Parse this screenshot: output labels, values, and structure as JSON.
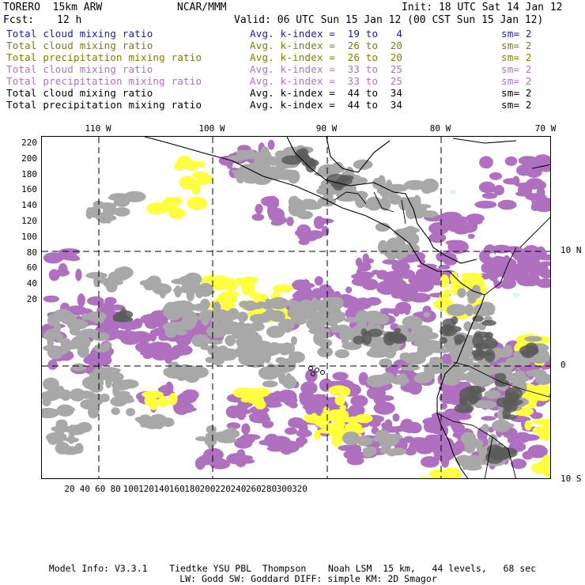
{
  "header": {
    "model": "TORERO  15km ARW",
    "org": "NCAR/MMM",
    "init": "Init: 18 UTC Sat 14 Jan 12",
    "fcst_label": "Fcst:",
    "fcst_value": "12 h",
    "valid": "Valid: 06 UTC Sun 15 Jan 12 (00 CST Sun 15 Jan 12)"
  },
  "fields": [
    {
      "name": "Total cloud mixing ratio",
      "kindex": "Avg. k-index =  19 to   4",
      "sm": "sm= 2",
      "color": "#1a1ab4"
    },
    {
      "name": "Total cloud mixing ratio",
      "kindex": "Avg. k-index =  26 to  20",
      "sm": "sm= 2",
      "color": "#7e7e00"
    },
    {
      "name": "Total precipitation mixing ratio",
      "kindex": "Avg. k-index =  26 to  20",
      "sm": "sm= 2",
      "color": "#7e7e00"
    },
    {
      "name": "Total cloud mixing ratio",
      "kindex": "Avg. k-index =  33 to  25",
      "sm": "sm= 2",
      "color": "#b070c0"
    },
    {
      "name": "Total precipitation mixing ratio",
      "kindex": "Avg. k-index =  33 to  25",
      "sm": "sm= 2",
      "color": "#b070c0"
    },
    {
      "name": "Total cloud mixing ratio",
      "kindex": "Avg. k-index =  44 to  34",
      "sm": "sm= 2",
      "color": "#000000"
    },
    {
      "name": "Total precipitation mixing ratio",
      "kindex": "Avg. k-index =  44 to  34",
      "sm": "sm= 2",
      "color": "#000000"
    }
  ],
  "map": {
    "top_lon_labels": [
      "110 W",
      "100 W",
      "90 W",
      "80 W",
      "70 W"
    ],
    "right_lat_labels": [
      "10 N",
      "0",
      "10 S"
    ],
    "left_grid_labels": [
      "220",
      "200",
      "180",
      "160",
      "140",
      "120",
      "100",
      "80",
      "60",
      "40",
      "20"
    ],
    "bottom_grid_labels": [
      "20",
      "40",
      "60",
      "80",
      "100",
      "120",
      "140",
      "160",
      "180",
      "200",
      "220",
      "240",
      "260",
      "280",
      "300",
      "320"
    ],
    "colors": {
      "grey": "#a8a8a8",
      "dark_grey": "#5a5a5a",
      "purple": "#b070c0",
      "yellow": "#ffff40",
      "light_blue": "#d8f4f8"
    }
  },
  "footer": {
    "line1": "Model Info: V3.3.1    Tiedtke YSU PBL  Thompson    Noah LSM  15 km,   44 levels,   68 sec",
    "line2": "LW: Godd SW: Goddard DIFF: simple KM: 2D Smagor"
  }
}
